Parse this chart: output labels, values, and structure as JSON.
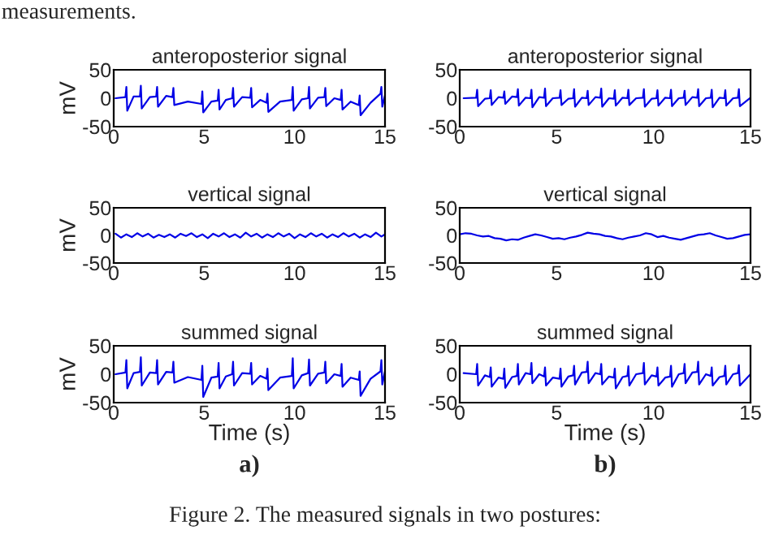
{
  "chart_data": [
    {
      "type": "line",
      "title": "anteroposterior signal",
      "ylabel": "mV",
      "xlim": [
        0,
        15
      ],
      "ylim": [
        -50,
        50
      ],
      "xticks": [
        0,
        5,
        10,
        15
      ],
      "yticks": [
        -50,
        0,
        50
      ],
      "grid": false,
      "annotations": [
        "measurements."
      ],
      "series": [
        {
          "color": "#0000e6",
          "x": [
            0.1,
            0.65,
            0.7,
            0.75,
            1.1,
            1.45,
            1.5,
            1.55,
            2.0,
            2.35,
            2.4,
            2.45,
            2.9,
            3.25,
            3.3,
            3.35,
            4.1,
            4.85,
            4.9,
            4.95,
            5.4,
            5.75,
            5.8,
            5.85,
            6.2,
            6.55,
            6.6,
            6.65,
            7.1,
            7.55,
            7.6,
            7.65,
            8.1,
            8.45,
            8.5,
            8.55,
            9.2,
            9.85,
            9.9,
            9.95,
            10.4,
            10.75,
            10.8,
            10.85,
            11.3,
            11.65,
            11.7,
            11.75,
            12.2,
            12.55,
            12.6,
            12.65,
            13.1,
            13.55,
            13.6,
            13.65,
            14.2,
            14.75,
            14.8,
            14.85,
            15
          ],
          "values": [
            0,
            2,
            20,
            -22,
            3,
            3,
            22,
            -18,
            2,
            3,
            20,
            -15,
            4,
            2,
            18,
            -12,
            -6,
            -10,
            12,
            -25,
            -6,
            -4,
            15,
            -20,
            -3,
            0,
            18,
            -15,
            2,
            1,
            18,
            -16,
            -3,
            -8,
            8,
            -24,
            -6,
            -3,
            20,
            -22,
            -2,
            0,
            20,
            -18,
            1,
            2,
            18,
            -14,
            0,
            -3,
            15,
            -20,
            -6,
            -12,
            5,
            -30,
            -8,
            8,
            20,
            -15,
            5
          ]
        }
      ]
    },
    {
      "type": "line",
      "title": "anteroposterior signal",
      "xlim": [
        0,
        15
      ],
      "ylim": [
        -50,
        50
      ],
      "xticks": [
        0,
        5,
        10,
        15
      ],
      "yticks": [
        -50,
        0,
        50
      ],
      "grid": false,
      "series": [
        {
          "color": "#0000e6",
          "x": [
            0.2,
            0.85,
            0.9,
            0.95,
            1.3,
            1.55,
            1.6,
            1.65,
            2.0,
            2.25,
            2.3,
            2.35,
            2.7,
            2.95,
            3.0,
            3.05,
            3.4,
            3.65,
            3.7,
            3.75,
            4.1,
            4.35,
            4.4,
            4.45,
            4.8,
            5.15,
            5.2,
            5.25,
            5.6,
            5.85,
            5.9,
            5.95,
            6.3,
            6.55,
            6.6,
            6.65,
            7.0,
            7.25,
            7.3,
            7.35,
            7.7,
            7.95,
            8.0,
            8.05,
            8.4,
            8.65,
            8.7,
            8.75,
            9.1,
            9.45,
            9.5,
            9.55,
            9.9,
            10.15,
            10.2,
            10.25,
            10.6,
            10.85,
            10.9,
            10.95,
            11.3,
            11.55,
            11.6,
            11.65,
            12.0,
            12.25,
            12.3,
            12.35,
            12.7,
            12.95,
            13.0,
            13.05,
            13.4,
            13.65,
            13.7,
            13.75,
            14.1,
            14.35,
            14.4,
            14.45,
            15
          ],
          "values": [
            0,
            1,
            15,
            -14,
            -1,
            0,
            14,
            -12,
            2,
            1,
            12,
            -10,
            3,
            2,
            16,
            -13,
            1,
            0,
            15,
            -16,
            2,
            1,
            17,
            -14,
            0,
            1,
            14,
            -12,
            -1,
            0,
            16,
            -15,
            1,
            0,
            13,
            -12,
            2,
            1,
            17,
            -15,
            0,
            -1,
            14,
            -13,
            1,
            0,
            15,
            -12,
            0,
            1,
            16,
            -15,
            -1,
            0,
            14,
            -13,
            1,
            0,
            15,
            -14,
            0,
            1,
            13,
            -12,
            2,
            1,
            16,
            -14,
            0,
            1,
            15,
            -16,
            1,
            0,
            14,
            -13,
            0,
            1,
            16,
            -14,
            1
          ]
        }
      ]
    },
    {
      "type": "line",
      "title": "vertical signal",
      "ylabel": "mV",
      "xlim": [
        0,
        15
      ],
      "ylim": [
        -50,
        50
      ],
      "xticks": [
        0,
        5,
        10,
        15
      ],
      "yticks": [
        -50,
        0,
        50
      ],
      "grid": false,
      "series": [
        {
          "color": "#0000e6",
          "x": [
            0.1,
            0.4,
            0.7,
            1.0,
            1.3,
            1.6,
            1.9,
            2.2,
            2.5,
            2.8,
            3.1,
            3.4,
            3.7,
            4.0,
            4.3,
            4.6,
            4.9,
            5.2,
            5.5,
            5.8,
            6.1,
            6.4,
            6.7,
            7.0,
            7.3,
            7.6,
            7.9,
            8.2,
            8.5,
            8.8,
            9.1,
            9.4,
            9.7,
            10.0,
            10.3,
            10.6,
            10.9,
            11.2,
            11.5,
            11.8,
            12.1,
            12.4,
            12.7,
            13.0,
            13.3,
            13.6,
            13.9,
            14.2,
            14.5,
            14.8,
            15.0
          ],
          "values": [
            3,
            -4,
            2,
            -3,
            4,
            -2,
            3,
            -4,
            1,
            -3,
            2,
            -4,
            3,
            -1,
            4,
            -3,
            2,
            -5,
            3,
            -2,
            4,
            -3,
            2,
            -4,
            5,
            -2,
            3,
            -4,
            2,
            -3,
            4,
            -2,
            3,
            -5,
            2,
            -3,
            4,
            -2,
            3,
            -4,
            2,
            -3,
            4,
            -2,
            3,
            -4,
            2,
            -3,
            5,
            -2,
            2
          ]
        }
      ]
    },
    {
      "type": "line",
      "title": "vertical signal",
      "xlim": [
        0,
        15
      ],
      "ylim": [
        -50,
        50
      ],
      "xticks": [
        0,
        5,
        10,
        15
      ],
      "yticks": [
        -50,
        0,
        50
      ],
      "grid": false,
      "series": [
        {
          "color": "#0000e6",
          "x": [
            0.0,
            0.3,
            0.6,
            0.9,
            1.2,
            1.5,
            1.8,
            2.1,
            2.4,
            2.7,
            3.0,
            3.3,
            3.6,
            3.9,
            4.2,
            4.5,
            4.8,
            5.1,
            5.4,
            5.7,
            6.0,
            6.3,
            6.6,
            6.9,
            7.2,
            7.5,
            7.8,
            8.1,
            8.4,
            8.7,
            9.0,
            9.3,
            9.6,
            9.9,
            10.2,
            10.5,
            10.8,
            11.1,
            11.4,
            11.7,
            12.0,
            12.3,
            12.6,
            12.9,
            13.2,
            13.5,
            13.8,
            14.1,
            14.4,
            14.7,
            15.0
          ],
          "values": [
            2,
            4,
            3,
            0,
            -2,
            -1,
            -5,
            -6,
            -9,
            -7,
            -8,
            -4,
            -1,
            2,
            0,
            -3,
            -6,
            -5,
            -7,
            -4,
            -2,
            1,
            5,
            3,
            2,
            -1,
            -2,
            -5,
            -7,
            -4,
            -2,
            0,
            4,
            2,
            -3,
            -1,
            -4,
            -6,
            -8,
            -5,
            -2,
            1,
            2,
            4,
            0,
            -3,
            -6,
            -5,
            -2,
            1,
            2
          ]
        }
      ]
    },
    {
      "type": "line",
      "title": "summed signal",
      "ylabel": "mV",
      "xlabel": "Time (s)",
      "xlim": [
        0,
        15
      ],
      "ylim": [
        -50,
        50
      ],
      "xticks": [
        0,
        5,
        10,
        15
      ],
      "yticks": [
        -50,
        0,
        50
      ],
      "grid": false,
      "annotations": [
        "a)",
        "Figure 2. The measured signals in two postures:"
      ],
      "series": [
        {
          "color": "#0000e6",
          "x": [
            0.1,
            0.65,
            0.7,
            0.75,
            1.1,
            1.45,
            1.5,
            1.55,
            2.0,
            2.35,
            2.4,
            2.45,
            2.9,
            3.25,
            3.3,
            3.35,
            4.1,
            4.85,
            4.9,
            4.95,
            5.4,
            5.75,
            5.8,
            5.85,
            6.2,
            6.55,
            6.6,
            6.65,
            7.1,
            7.55,
            7.6,
            7.65,
            8.1,
            8.45,
            8.5,
            8.55,
            9.2,
            9.85,
            9.9,
            9.95,
            10.4,
            10.75,
            10.8,
            10.85,
            11.3,
            11.65,
            11.7,
            11.75,
            12.2,
            12.55,
            12.6,
            12.65,
            13.1,
            13.55,
            13.6,
            13.65,
            14.2,
            14.75,
            14.8,
            14.85,
            15
          ],
          "values": [
            0,
            3,
            25,
            -25,
            2,
            4,
            30,
            -20,
            3,
            2,
            25,
            -18,
            4,
            3,
            22,
            -15,
            -5,
            -10,
            15,
            -40,
            -6,
            -4,
            20,
            -25,
            -4,
            0,
            22,
            -20,
            2,
            1,
            20,
            -18,
            -3,
            -8,
            10,
            -28,
            -6,
            -3,
            28,
            -25,
            -2,
            2,
            26,
            -20,
            1,
            3,
            22,
            -16,
            0,
            -3,
            18,
            -22,
            -6,
            -10,
            5,
            -38,
            -8,
            5,
            25,
            -18,
            5
          ]
        }
      ]
    },
    {
      "type": "line",
      "title": "summed signal",
      "xlabel": "Time (s)",
      "xlim": [
        0,
        15
      ],
      "ylim": [
        -50,
        50
      ],
      "xticks": [
        0,
        5,
        10,
        15
      ],
      "yticks": [
        -50,
        0,
        50
      ],
      "grid": false,
      "annotations": [
        "b)"
      ],
      "series": [
        {
          "color": "#0000e6",
          "x": [
            0.2,
            0.85,
            0.9,
            0.95,
            1.3,
            1.55,
            1.6,
            1.65,
            2.0,
            2.25,
            2.3,
            2.35,
            2.7,
            2.95,
            3.0,
            3.05,
            3.4,
            3.65,
            3.7,
            3.75,
            4.1,
            4.35,
            4.4,
            4.45,
            4.8,
            5.15,
            5.2,
            5.25,
            5.6,
            5.85,
            5.9,
            5.95,
            6.3,
            6.55,
            6.6,
            6.65,
            7.0,
            7.25,
            7.3,
            7.35,
            7.7,
            7.95,
            8.0,
            8.05,
            8.4,
            8.65,
            8.7,
            8.75,
            9.1,
            9.45,
            9.5,
            9.55,
            9.9,
            10.15,
            10.2,
            10.25,
            10.6,
            10.85,
            10.9,
            10.95,
            11.3,
            11.55,
            11.6,
            11.65,
            12.0,
            12.25,
            12.3,
            12.35,
            12.7,
            12.95,
            13.0,
            13.05,
            13.4,
            13.65,
            13.7,
            13.75,
            14.1,
            14.35,
            14.4,
            14.45,
            15
          ],
          "values": [
            2,
            0,
            18,
            -20,
            -2,
            -5,
            12,
            -22,
            -6,
            -8,
            10,
            -24,
            -5,
            -3,
            18,
            -18,
            2,
            0,
            20,
            -16,
            0,
            -4,
            12,
            -20,
            -6,
            -8,
            10,
            -22,
            -4,
            -2,
            15,
            -18,
            3,
            4,
            22,
            -16,
            2,
            0,
            18,
            -18,
            -4,
            -6,
            10,
            -25,
            -5,
            -3,
            14,
            -20,
            0,
            2,
            20,
            -18,
            -2,
            -4,
            12,
            -20,
            -6,
            -4,
            15,
            -22,
            0,
            2,
            18,
            -16,
            3,
            4,
            22,
            -18,
            0,
            -3,
            12,
            -20,
            -5,
            -3,
            15,
            -18,
            0,
            2,
            16,
            -20,
            0
          ]
        }
      ]
    }
  ]
}
